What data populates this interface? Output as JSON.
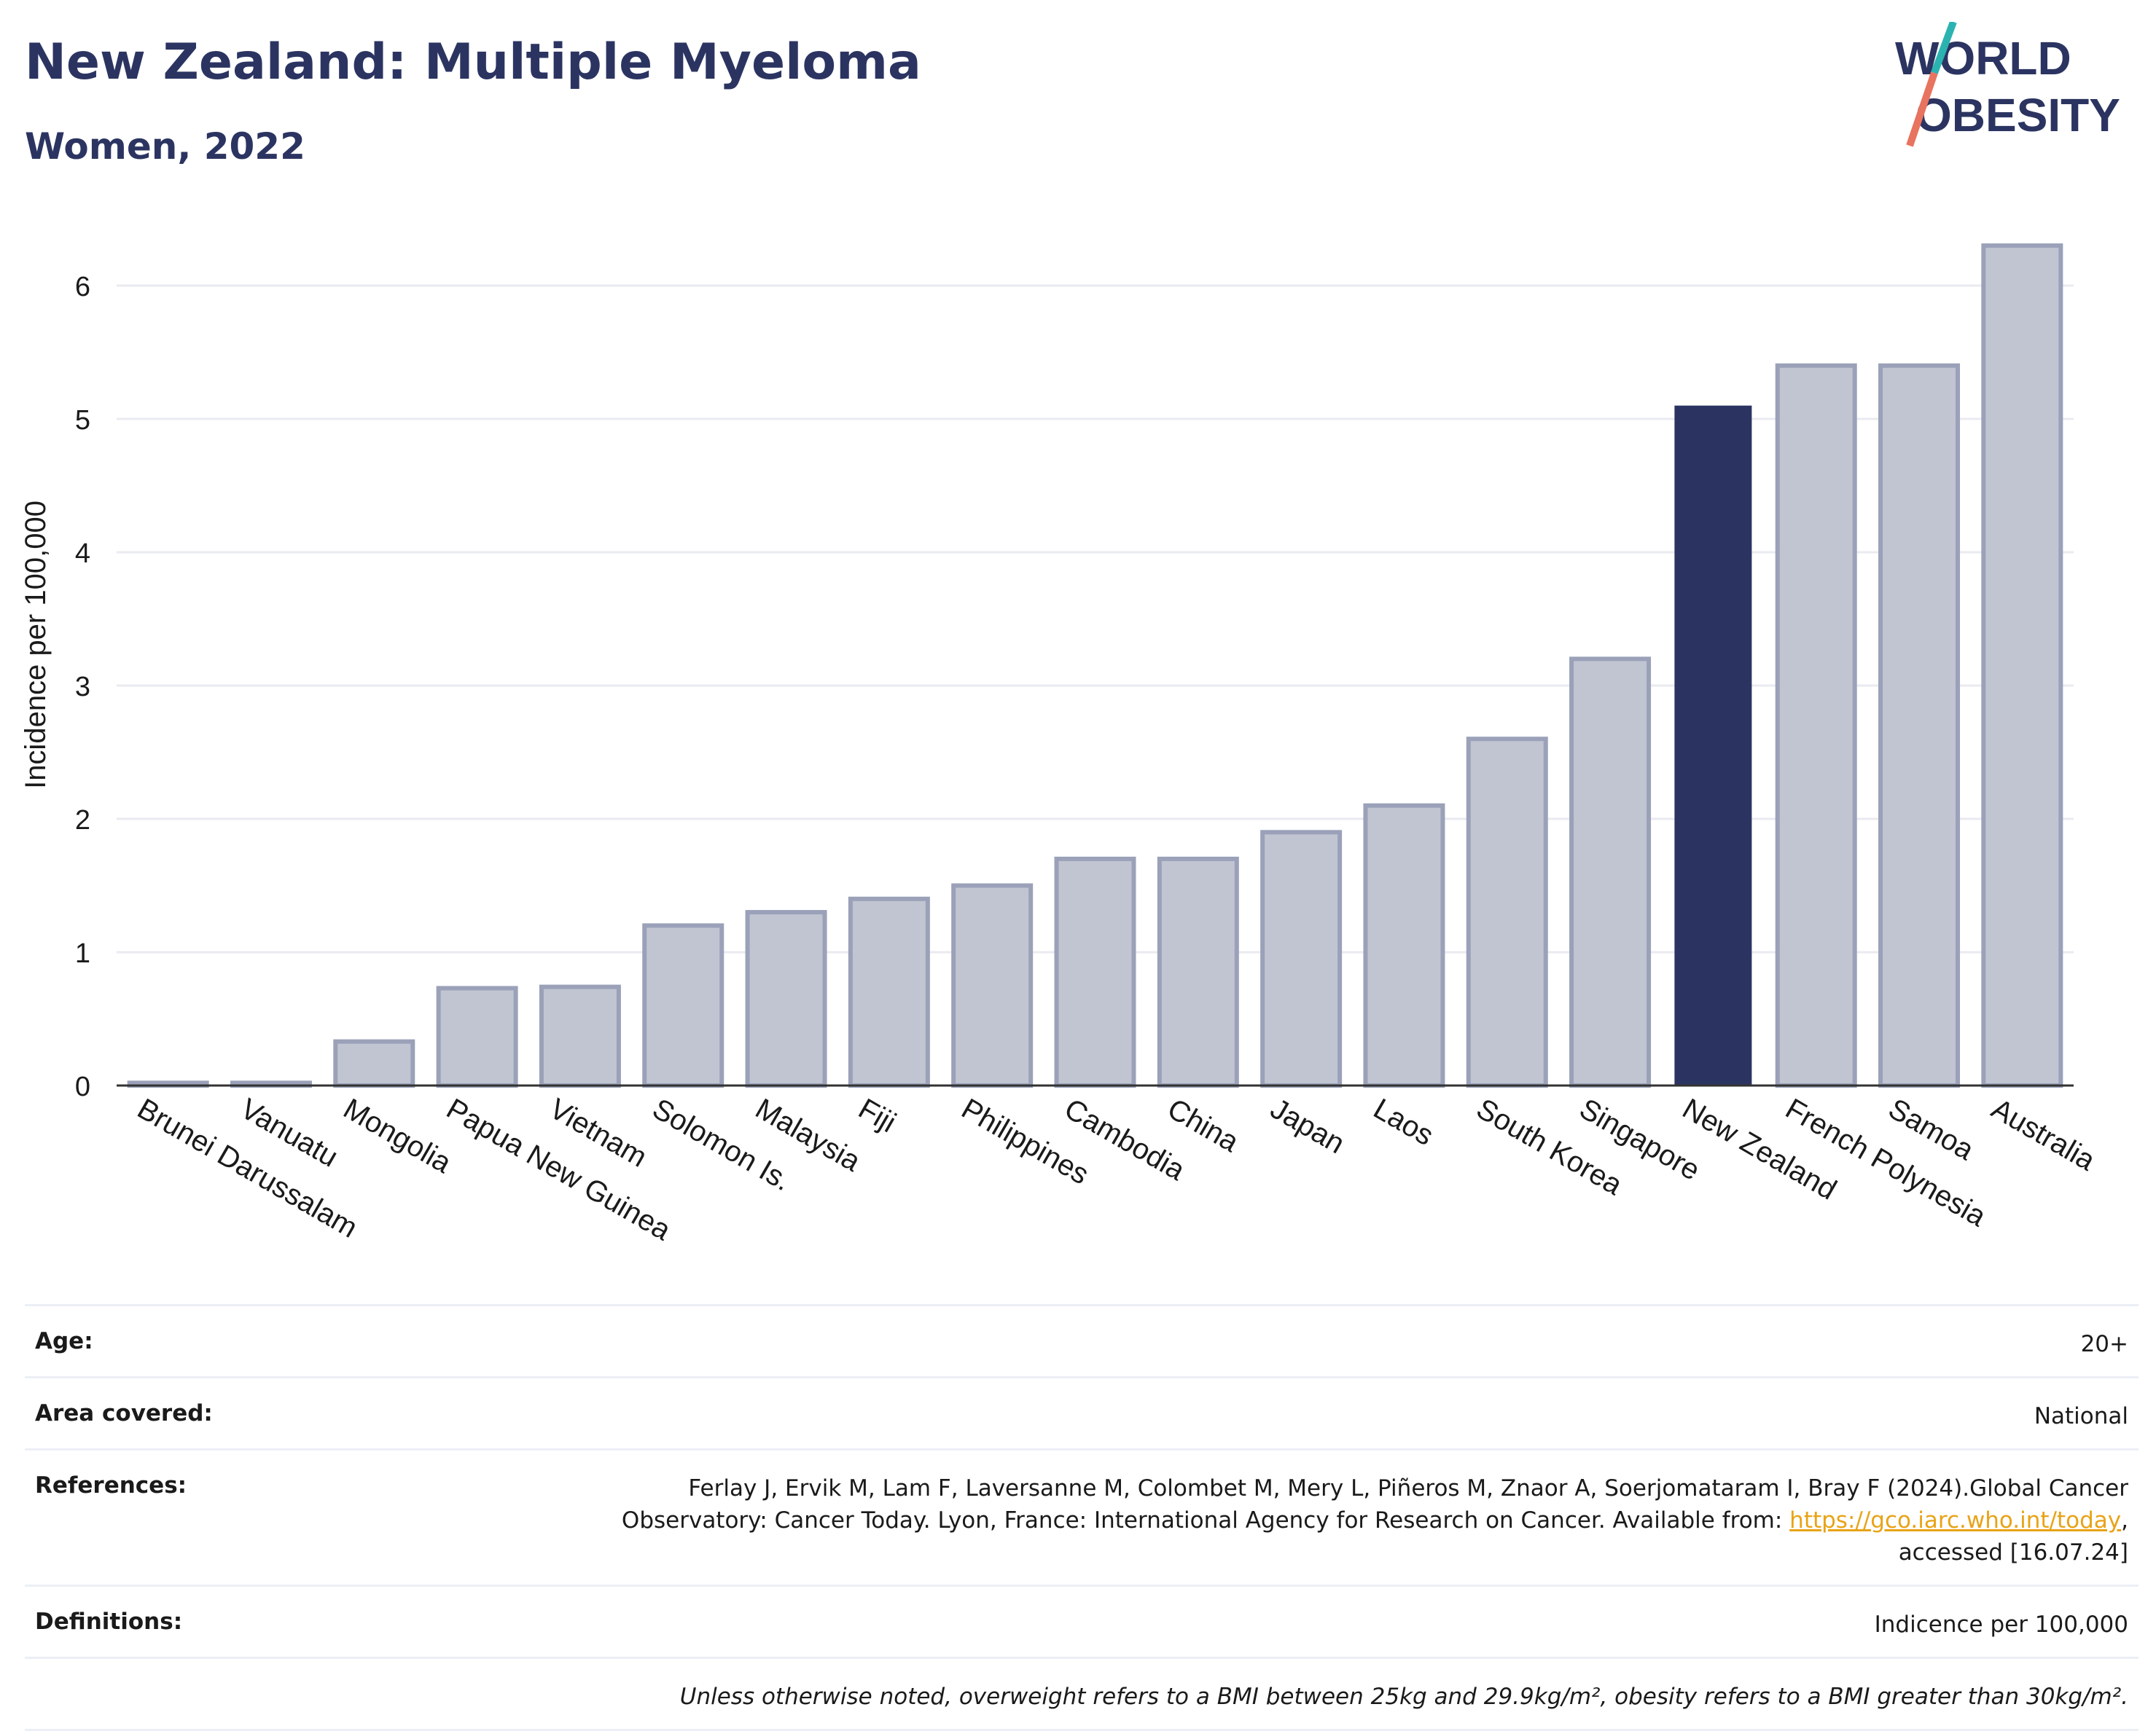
{
  "header": {
    "title": "New Zealand: Multiple Myeloma",
    "subtitle": "Women, 2022"
  },
  "logo": {
    "line1": "WORLD",
    "line2": "OBESITY"
  },
  "colors": {
    "highlight": "#2b3461",
    "bar_fill": "#c1c5d2",
    "bar_stroke": "#9aa1b8",
    "title": "#2b3461",
    "grid": "#e9ebf1",
    "logo_teal": "#2bb3b1",
    "logo_coral": "#e8735f",
    "link": "#e8a317"
  },
  "chart_data": {
    "type": "bar",
    "title": "New Zealand: Multiple Myeloma",
    "subtitle": "Women, 2022",
    "xlabel": "",
    "ylabel": "Incidence per 100,000",
    "ylim": [
      0,
      6.5
    ],
    "yticks": [
      0,
      1,
      2,
      3,
      4,
      5,
      6
    ],
    "grid": true,
    "highlight": "New Zealand",
    "categories": [
      "Brunei Darussalam",
      "Vanuatu",
      "Mongolia",
      "Papua New Guinea",
      "Vietnam",
      "Solomon Is.",
      "Malaysia",
      "Fiji",
      "Philippines",
      "Cambodia",
      "China",
      "Japan",
      "Laos",
      "South Korea",
      "Singapore",
      "New Zealand",
      "French Polynesia",
      "Samoa",
      "Australia"
    ],
    "values": [
      0.02,
      0.02,
      0.33,
      0.73,
      0.74,
      1.2,
      1.3,
      1.4,
      1.5,
      1.7,
      1.7,
      1.9,
      2.1,
      2.6,
      3.2,
      5.1,
      5.4,
      5.4,
      6.3
    ]
  },
  "info": {
    "age_label": "Age:",
    "age_value": "20+",
    "area_label": "Area covered:",
    "area_value": "National",
    "references_label": "References:",
    "references_line1": "Ferlay J, Ervik M, Lam F, Laversanne M, Colombet M, Mery L, Piñeros M, Znaor A, Soerjomataram I, Bray F (2024).Global Cancer",
    "references_line2_pre": "Observatory: Cancer Today. Lyon, France: International Agency for Research on Cancer. Available from: ",
    "references_link": "https://gco.iarc.who.int/today",
    "references_line2_post": ",",
    "references_line3": "accessed [16.07.24]",
    "definitions_label": "Definitions:",
    "definitions_value": "Indicence per 100,000",
    "note": "Unless otherwise noted, overweight refers to a BMI between 25kg and 29.9kg/m², obesity refers to a BMI greater than 30kg/m²."
  }
}
